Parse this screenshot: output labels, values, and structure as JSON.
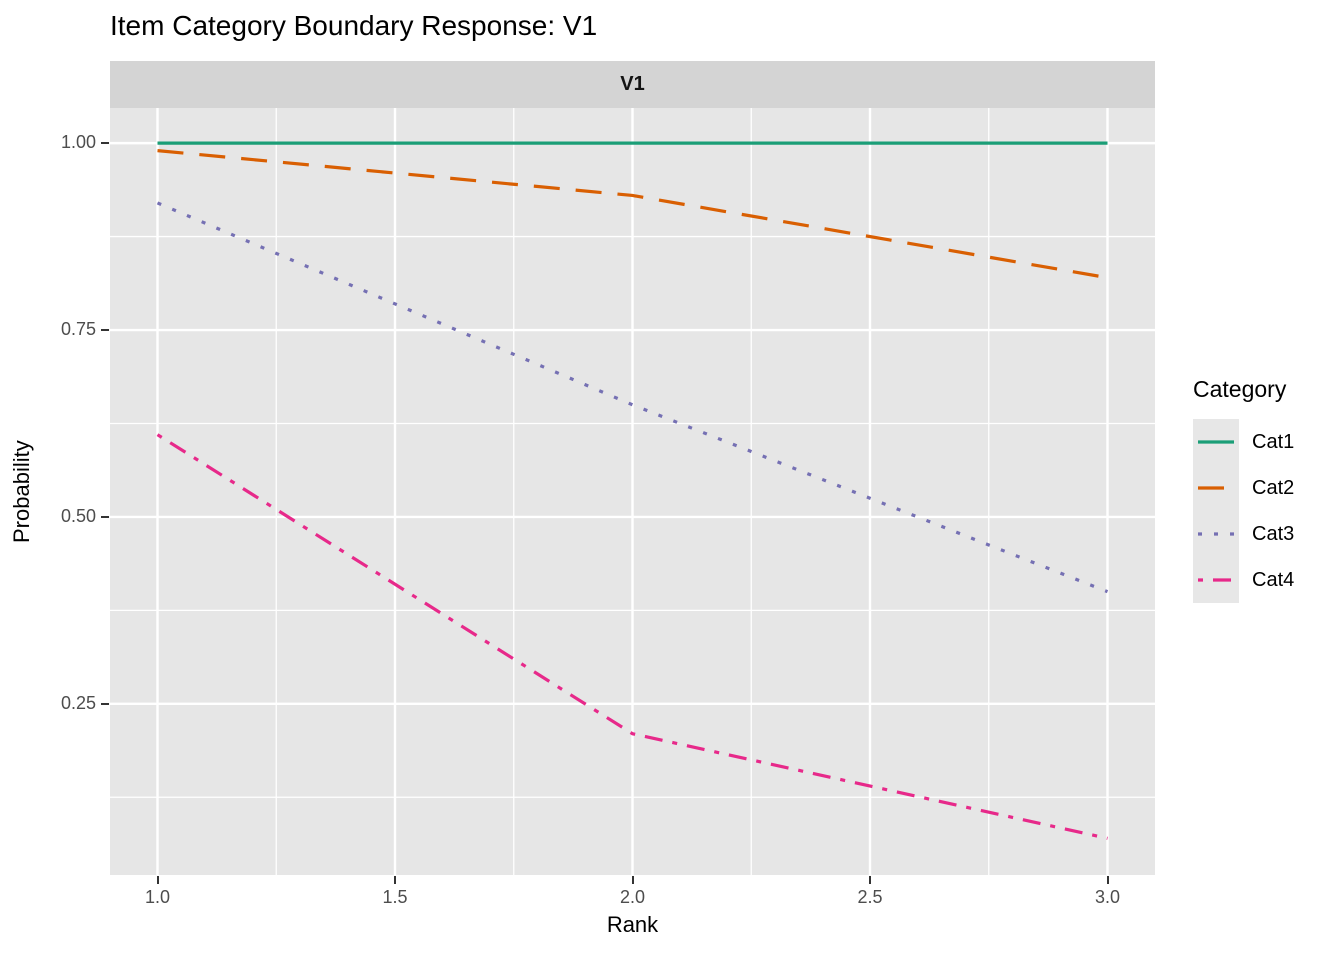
{
  "chart_data": {
    "type": "line",
    "title": "Item Category Boundary Response: V1",
    "facet_label": "V1",
    "xlabel": "Rank",
    "ylabel": "Probability",
    "x": [
      1.0,
      2.0,
      3.0
    ],
    "series": [
      {
        "name": "Cat1",
        "values": [
          1.0,
          1.0,
          1.0
        ],
        "color": "#1B9E77",
        "linetype": "solid",
        "dash": ""
      },
      {
        "name": "Cat2",
        "values": [
          0.99,
          0.93,
          0.82
        ],
        "color": "#D95F02",
        "linetype": "dashed",
        "dash": "26 16"
      },
      {
        "name": "Cat3",
        "values": [
          0.92,
          0.65,
          0.4
        ],
        "color": "#7570B3",
        "linetype": "dotted",
        "dash": "4 12"
      },
      {
        "name": "Cat4",
        "values": [
          0.61,
          0.21,
          0.07
        ],
        "color": "#E7298A",
        "linetype": "dotdash",
        "dash": "5 10 18 10"
      }
    ],
    "xlim": [
      0.9,
      3.1
    ],
    "ylim": [
      0.021,
      1.047
    ],
    "x_major_ticks": [
      1.0,
      1.5,
      2.0,
      2.5,
      3.0
    ],
    "x_tick_labels": [
      "1.0",
      "1.5",
      "2.0",
      "2.5",
      "3.0"
    ],
    "x_minor_ticks": [
      1.25,
      1.75,
      2.25,
      2.75
    ],
    "y_major_ticks": [
      0.25,
      0.5,
      0.75,
      1.0
    ],
    "y_tick_labels": [
      "0.25",
      "0.50",
      "0.75",
      "1.00"
    ],
    "y_minor_ticks": [
      0.125,
      0.375,
      0.625,
      0.875
    ],
    "grid": true,
    "legend": {
      "title": "Category",
      "position": "right",
      "entries": [
        "Cat1",
        "Cat2",
        "Cat3",
        "Cat4"
      ]
    },
    "theme": {
      "panel_bg": "#E6E6E6",
      "strip_bg": "#D4D4D4",
      "grid_color": "#FFFFFF",
      "axis_text_color": "#4D4D4D",
      "tick_color": "#333333",
      "text_color": "#000000",
      "legend_key_bg": "#E7E7E7"
    }
  }
}
